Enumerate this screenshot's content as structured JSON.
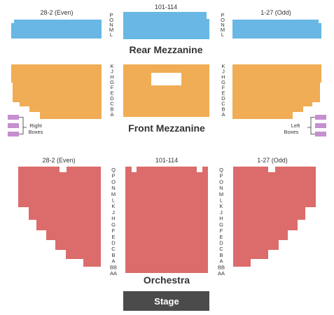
{
  "colors": {
    "mezz_rear": "#68b7e4",
    "mezz_front": "#f0ad55",
    "orchestra": "#db6c6b",
    "boxes": "#c58fd0",
    "stage": "#4b4b4b",
    "text": "#333333",
    "stage_text": "#ffffff"
  },
  "rear_mezzanine": {
    "title": "Rear Mezzanine",
    "left_label": "28-2 (Even)",
    "center_label": "101-114",
    "right_label": "1-27 (Odd)",
    "rows_left": [
      "P",
      "O",
      "N",
      "M",
      "L"
    ],
    "rows_right": [
      "P",
      "O",
      "N",
      "M",
      "L"
    ]
  },
  "front_mezzanine": {
    "title": "Front Mezzanine",
    "rows_left": [
      "K",
      "J",
      "H",
      "G",
      "F",
      "E",
      "D",
      "C",
      "B",
      "A"
    ],
    "rows_right": [
      "K",
      "J",
      "H",
      "G",
      "F",
      "E",
      "D",
      "C",
      "B",
      "A"
    ],
    "right_boxes_label": [
      "Right",
      "Boxes"
    ],
    "left_boxes_label": [
      "Left",
      "Boxes"
    ]
  },
  "orchestra": {
    "title": "Orchestra",
    "left_label": "28-2 (Even)",
    "center_label": "101-114",
    "right_label": "1-27 (Odd)",
    "rows_left": [
      "Q",
      "P",
      "O",
      "N",
      "M",
      "L",
      "K",
      "J",
      "H",
      "G",
      "F",
      "E",
      "D",
      "C",
      "B",
      "A",
      "BB",
      "AA"
    ],
    "rows_right": [
      "Q",
      "P",
      "O",
      "N",
      "M",
      "L",
      "K",
      "J",
      "H",
      "G",
      "F",
      "E",
      "D",
      "C",
      "B",
      "A",
      "BB",
      "AA"
    ]
  },
  "stage": {
    "label": "Stage"
  }
}
